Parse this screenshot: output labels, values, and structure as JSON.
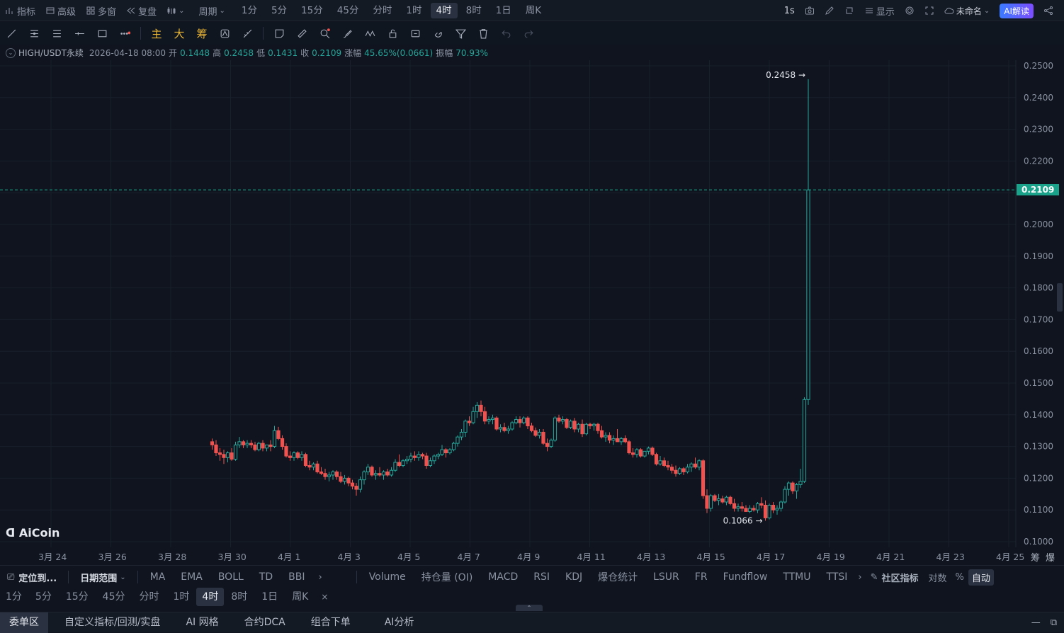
{
  "topbar": {
    "left": [
      {
        "icon": "indicator-icon",
        "label": "指标"
      },
      {
        "icon": "advanced-icon",
        "label": "高级"
      },
      {
        "icon": "multi-window-icon",
        "label": "多窗"
      },
      {
        "icon": "replay-icon",
        "label": "复盘"
      },
      {
        "icon": "candle-type-icon",
        "label": ""
      }
    ],
    "period_label": "周期",
    "timeframes": [
      "1分",
      "5分",
      "15分",
      "45分",
      "分时",
      "1时",
      "4时",
      "8时",
      "1日",
      "周K"
    ],
    "active_timeframe": "4时",
    "right_interval": "1s",
    "display_label": "显示",
    "layout_name": "未命名",
    "ai_button": "AI解读"
  },
  "toolbar": {
    "gold_tools": [
      "主",
      "大",
      "筹"
    ]
  },
  "info": {
    "symbol": "HIGH/USDT永续",
    "datetime": "2026-04-18 08:00",
    "open_label": "开",
    "open": "0.1448",
    "high_label": "高",
    "high": "0.2458",
    "low_label": "低",
    "low": "0.1431",
    "close_label": "收",
    "close": "0.2109",
    "change_label": "涨幅",
    "change": "45.65%(0.0661)",
    "amp_label": "振幅",
    "amp": "70.93%"
  },
  "chart_data": {
    "type": "candlestick",
    "ylim": [
      0.1,
      0.25
    ],
    "yticks": [
      "0.2500",
      "0.2400",
      "0.2300",
      "0.2200",
      "0.2100",
      "0.2000",
      "0.1900",
      "0.1800",
      "0.1700",
      "0.1600",
      "0.1500",
      "0.1400",
      "0.1300",
      "0.1200",
      "0.1100",
      "0.1000"
    ],
    "xticks": [
      "3月 24",
      "3月 26",
      "3月 28",
      "3月 30",
      "4月 1",
      "4月 3",
      "4月 5",
      "4月 7",
      "4月 9",
      "4月 11",
      "4月 13",
      "4月 15",
      "4月 17",
      "4月 19",
      "4月 21",
      "4月 23",
      "4月 25"
    ],
    "last_price": "0.2109",
    "max_label": "0.2458 →",
    "min_label": "0.1066 →",
    "watermark": "AiCoin",
    "axis_right_labels": [
      "筹",
      "爆"
    ],
    "ohlc": [
      [
        0.1315,
        0.1325,
        0.129,
        0.1305
      ],
      [
        0.1305,
        0.132,
        0.127,
        0.128
      ],
      [
        0.128,
        0.1295,
        0.1255,
        0.1275
      ],
      [
        0.1275,
        0.129,
        0.1245,
        0.1265
      ],
      [
        0.1265,
        0.1285,
        0.125,
        0.128
      ],
      [
        0.128,
        0.1295,
        0.1255,
        0.126
      ],
      [
        0.126,
        0.1315,
        0.1255,
        0.1305
      ],
      [
        0.1305,
        0.133,
        0.1295,
        0.1315
      ],
      [
        0.1315,
        0.132,
        0.1295,
        0.1305
      ],
      [
        0.1305,
        0.132,
        0.1295,
        0.131
      ],
      [
        0.131,
        0.132,
        0.1295,
        0.1305
      ],
      [
        0.1305,
        0.1315,
        0.1285,
        0.129
      ],
      [
        0.129,
        0.1315,
        0.1285,
        0.131
      ],
      [
        0.131,
        0.132,
        0.1285,
        0.1295
      ],
      [
        0.1295,
        0.1305,
        0.1285,
        0.1305
      ],
      [
        0.1305,
        0.132,
        0.1285,
        0.13
      ],
      [
        0.13,
        0.1365,
        0.1295,
        0.135
      ],
      [
        0.135,
        0.1362,
        0.132,
        0.1325
      ],
      [
        0.1325,
        0.1335,
        0.129,
        0.13
      ],
      [
        0.13,
        0.131,
        0.1265,
        0.127
      ],
      [
        0.127,
        0.1285,
        0.1255,
        0.1265
      ],
      [
        0.1265,
        0.1285,
        0.1255,
        0.128
      ],
      [
        0.128,
        0.1285,
        0.126,
        0.1265
      ],
      [
        0.1265,
        0.1285,
        0.1255,
        0.1275
      ],
      [
        0.1275,
        0.128,
        0.1235,
        0.124
      ],
      [
        0.124,
        0.1255,
        0.1225,
        0.1235
      ],
      [
        0.1235,
        0.125,
        0.1225,
        0.1245
      ],
      [
        0.1245,
        0.1255,
        0.1215,
        0.122
      ],
      [
        0.122,
        0.1235,
        0.121,
        0.1215
      ],
      [
        0.1215,
        0.123,
        0.1195,
        0.1205
      ],
      [
        0.1205,
        0.122,
        0.119,
        0.121
      ],
      [
        0.121,
        0.1225,
        0.1195,
        0.122
      ],
      [
        0.122,
        0.1225,
        0.1195,
        0.1205
      ],
      [
        0.1205,
        0.122,
        0.1185,
        0.119
      ],
      [
        0.119,
        0.121,
        0.118,
        0.12
      ],
      [
        0.12,
        0.1205,
        0.1175,
        0.1185
      ],
      [
        0.1185,
        0.1195,
        0.1165,
        0.1175
      ],
      [
        0.1175,
        0.1185,
        0.1145,
        0.1165
      ],
      [
        0.1165,
        0.1205,
        0.1155,
        0.1195
      ],
      [
        0.1195,
        0.1225,
        0.118,
        0.122
      ],
      [
        0.122,
        0.1245,
        0.121,
        0.1235
      ],
      [
        0.1235,
        0.124,
        0.1205,
        0.121
      ],
      [
        0.121,
        0.1225,
        0.1195,
        0.1215
      ],
      [
        0.1215,
        0.1235,
        0.1205,
        0.121
      ],
      [
        0.121,
        0.1225,
        0.1195,
        0.122
      ],
      [
        0.122,
        0.123,
        0.1205,
        0.121
      ],
      [
        0.121,
        0.1235,
        0.1205,
        0.1225
      ],
      [
        0.1225,
        0.126,
        0.122,
        0.125
      ],
      [
        0.125,
        0.1275,
        0.1235,
        0.124
      ],
      [
        0.124,
        0.126,
        0.1235,
        0.1255
      ],
      [
        0.1255,
        0.127,
        0.1245,
        0.126
      ],
      [
        0.126,
        0.128,
        0.125,
        0.127
      ],
      [
        0.127,
        0.1285,
        0.1255,
        0.1265
      ],
      [
        0.1265,
        0.1285,
        0.1255,
        0.1275
      ],
      [
        0.1275,
        0.128,
        0.126,
        0.127
      ],
      [
        0.127,
        0.128,
        0.123,
        0.124
      ],
      [
        0.124,
        0.1265,
        0.1235,
        0.1255
      ],
      [
        0.1255,
        0.1275,
        0.1245,
        0.127
      ],
      [
        0.127,
        0.128,
        0.126,
        0.1275
      ],
      [
        0.1275,
        0.1305,
        0.127,
        0.129
      ],
      [
        0.129,
        0.1295,
        0.1265,
        0.128
      ],
      [
        0.128,
        0.1295,
        0.1275,
        0.129
      ],
      [
        0.129,
        0.1315,
        0.1285,
        0.131
      ],
      [
        0.131,
        0.1335,
        0.13,
        0.133
      ],
      [
        0.133,
        0.1355,
        0.132,
        0.1345
      ],
      [
        0.1345,
        0.1385,
        0.133,
        0.138
      ],
      [
        0.138,
        0.1395,
        0.1365,
        0.1375
      ],
      [
        0.1375,
        0.1425,
        0.137,
        0.141
      ],
      [
        0.141,
        0.144,
        0.139,
        0.143
      ],
      [
        0.143,
        0.1445,
        0.1395,
        0.141
      ],
      [
        0.141,
        0.1425,
        0.137,
        0.138
      ],
      [
        0.138,
        0.1395,
        0.137,
        0.1385
      ],
      [
        0.1385,
        0.14,
        0.137,
        0.139
      ],
      [
        0.139,
        0.1395,
        0.135,
        0.1355
      ],
      [
        0.1355,
        0.137,
        0.1345,
        0.136
      ],
      [
        0.136,
        0.1375,
        0.1345,
        0.135
      ],
      [
        0.135,
        0.1365,
        0.134,
        0.1355
      ],
      [
        0.1355,
        0.138,
        0.135,
        0.1375
      ],
      [
        0.1375,
        0.1395,
        0.137,
        0.1385
      ],
      [
        0.1385,
        0.1395,
        0.136,
        0.1375
      ],
      [
        0.1375,
        0.1395,
        0.137,
        0.139
      ],
      [
        0.139,
        0.1395,
        0.1355,
        0.1365
      ],
      [
        0.1365,
        0.1375,
        0.1345,
        0.135
      ],
      [
        0.135,
        0.136,
        0.133,
        0.1335
      ],
      [
        0.1335,
        0.1355,
        0.1325,
        0.1345
      ],
      [
        0.1345,
        0.1355,
        0.1305,
        0.131
      ],
      [
        0.131,
        0.1325,
        0.1285,
        0.13
      ],
      [
        0.13,
        0.1325,
        0.1295,
        0.132
      ],
      [
        0.132,
        0.1395,
        0.1315,
        0.139
      ],
      [
        0.139,
        0.14,
        0.1375,
        0.138
      ],
      [
        0.138,
        0.1395,
        0.137,
        0.1385
      ],
      [
        0.1385,
        0.139,
        0.1355,
        0.136
      ],
      [
        0.136,
        0.1385,
        0.1355,
        0.138
      ],
      [
        0.138,
        0.139,
        0.1345,
        0.1355
      ],
      [
        0.1355,
        0.1375,
        0.1345,
        0.137
      ],
      [
        0.137,
        0.1385,
        0.133,
        0.134
      ],
      [
        0.134,
        0.1375,
        0.1335,
        0.137
      ],
      [
        0.137,
        0.1375,
        0.1355,
        0.1365
      ],
      [
        0.1365,
        0.1375,
        0.135,
        0.137
      ],
      [
        0.137,
        0.1375,
        0.134,
        0.135
      ],
      [
        0.135,
        0.1365,
        0.1325,
        0.133
      ],
      [
        0.133,
        0.1345,
        0.1315,
        0.1335
      ],
      [
        0.1335,
        0.1345,
        0.131,
        0.132
      ],
      [
        0.132,
        0.1335,
        0.1305,
        0.1325
      ],
      [
        0.1325,
        0.1355,
        0.1315,
        0.1315
      ],
      [
        0.1315,
        0.133,
        0.1305,
        0.1325
      ],
      [
        0.1325,
        0.1335,
        0.131,
        0.1315
      ],
      [
        0.1315,
        0.132,
        0.1275,
        0.128
      ],
      [
        0.128,
        0.1295,
        0.1265,
        0.1275
      ],
      [
        0.1275,
        0.1295,
        0.1265,
        0.129
      ],
      [
        0.129,
        0.1295,
        0.1265,
        0.127
      ],
      [
        0.127,
        0.1285,
        0.1265,
        0.1285
      ],
      [
        0.1285,
        0.13,
        0.1275,
        0.1295
      ],
      [
        0.1295,
        0.13,
        0.127,
        0.1275
      ],
      [
        0.1275,
        0.128,
        0.124,
        0.1245
      ],
      [
        0.1245,
        0.127,
        0.124,
        0.1255
      ],
      [
        0.1255,
        0.1265,
        0.1235,
        0.124
      ],
      [
        0.124,
        0.1255,
        0.1225,
        0.1235
      ],
      [
        0.1235,
        0.1245,
        0.1215,
        0.1225
      ],
      [
        0.1225,
        0.124,
        0.1205,
        0.1215
      ],
      [
        0.1215,
        0.1235,
        0.121,
        0.123
      ],
      [
        0.123,
        0.1235,
        0.121,
        0.122
      ],
      [
        0.122,
        0.1245,
        0.1215,
        0.1235
      ],
      [
        0.1235,
        0.125,
        0.122,
        0.1245
      ],
      [
        0.1245,
        0.1265,
        0.123,
        0.1235
      ],
      [
        0.1235,
        0.126,
        0.1225,
        0.1255
      ],
      [
        0.1255,
        0.126,
        0.1135,
        0.1145
      ],
      [
        0.1145,
        0.1165,
        0.109,
        0.1105
      ],
      [
        0.1105,
        0.115,
        0.1095,
        0.1145
      ],
      [
        0.1145,
        0.115,
        0.1125,
        0.113
      ],
      [
        0.113,
        0.115,
        0.1115,
        0.1135
      ],
      [
        0.1135,
        0.1145,
        0.112,
        0.1125
      ],
      [
        0.1125,
        0.1145,
        0.1115,
        0.114
      ],
      [
        0.114,
        0.1145,
        0.1115,
        0.112
      ],
      [
        0.112,
        0.1135,
        0.1095,
        0.1105
      ],
      [
        0.1105,
        0.112,
        0.1095,
        0.111
      ],
      [
        0.111,
        0.1125,
        0.1095,
        0.1105
      ],
      [
        0.1105,
        0.1115,
        0.1095,
        0.1095
      ],
      [
        0.1095,
        0.1115,
        0.109,
        0.1105
      ],
      [
        0.1105,
        0.1115,
        0.1095,
        0.11
      ],
      [
        0.11,
        0.1125,
        0.109,
        0.112
      ],
      [
        0.112,
        0.114,
        0.1105,
        0.1115
      ],
      [
        0.1115,
        0.113,
        0.1066,
        0.1075
      ],
      [
        0.1075,
        0.112,
        0.107,
        0.1115
      ],
      [
        0.1115,
        0.1125,
        0.109,
        0.11
      ],
      [
        0.11,
        0.1115,
        0.1085,
        0.1105
      ],
      [
        0.1105,
        0.113,
        0.1095,
        0.1125
      ],
      [
        0.1125,
        0.1175,
        0.112,
        0.1165
      ],
      [
        0.1165,
        0.119,
        0.1145,
        0.1185
      ],
      [
        0.1185,
        0.119,
        0.115,
        0.116
      ],
      [
        0.116,
        0.1185,
        0.1135,
        0.118
      ],
      [
        0.118,
        0.123,
        0.117,
        0.119
      ],
      [
        0.119,
        0.1455,
        0.1185,
        0.1448
      ],
      [
        0.1448,
        0.2458,
        0.1431,
        0.2109
      ]
    ]
  },
  "indicators": {
    "left_pinned": [
      {
        "label": "定位到..."
      },
      {
        "label": "日期范围"
      }
    ],
    "main": [
      "MA",
      "EMA",
      "BOLL",
      "TD",
      "BBI"
    ],
    "sub": [
      "Volume",
      "持仓量 (OI)",
      "MACD",
      "RSI",
      "KDJ",
      "爆仓统计",
      "LSUR",
      "FR",
      "Fundflow",
      "TTMU",
      "TTSI"
    ],
    "community": "社区指标",
    "scale_options": [
      "对数",
      "%",
      "自动"
    ]
  },
  "bottom_timeframes": [
    "1分",
    "5分",
    "15分",
    "45分",
    "分时",
    "1时",
    "4时",
    "8时",
    "1日",
    "周K"
  ],
  "bottom_close": "×",
  "bottom_tabs": [
    "委单区",
    "自定义指标/回测/实盘",
    "AI 网格",
    "合约DCA",
    "组合下单",
    "AI分析"
  ],
  "colors": {
    "up": "#26a69a",
    "down": "#ef5350",
    "accent": "#1aa38a",
    "bg": "#0f141e"
  }
}
